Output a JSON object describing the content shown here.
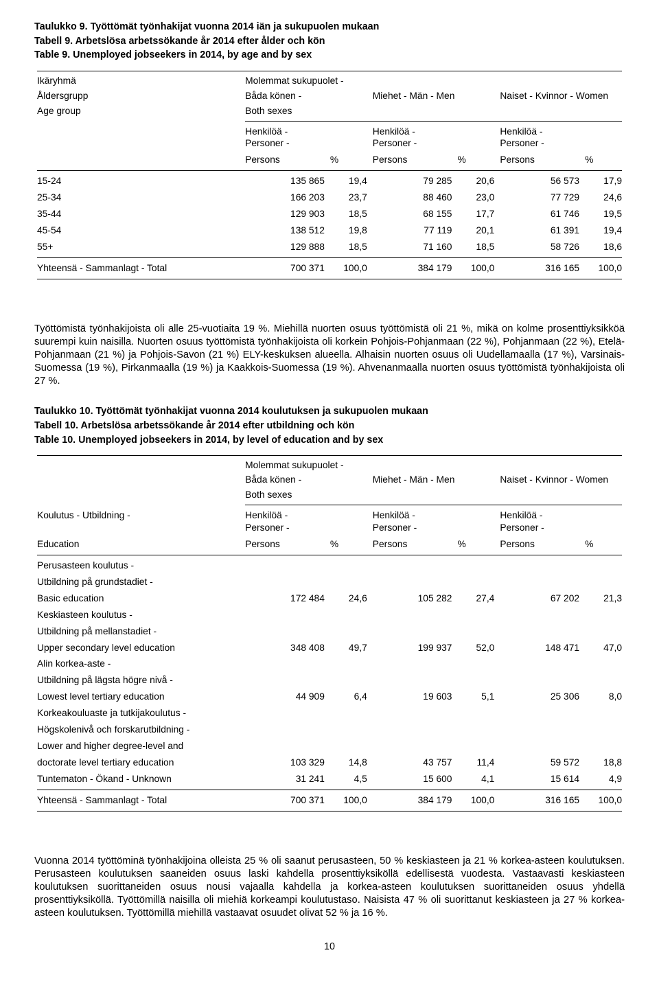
{
  "table9": {
    "title_fi": "Taulukko 9. Työttömät työnhakijat vuonna 2014 iän ja sukupuolen mukaan",
    "title_sv": "Tabell 9. Arbetslösa arbetssökande år 2014 efter ålder och kön",
    "title_en": "Table 9. Unemployed jobseekers in 2014, by age and by sex",
    "rowheaders": {
      "line1": "Ikäryhmä",
      "line2": "Åldersgrupp",
      "line3": "Age group"
    },
    "groupheaders": {
      "both_line1": "Molemmat sukupuolet -",
      "both_line2": "Båda könen -",
      "both_line3": "Both sexes",
      "men": "Miehet - Män - Men",
      "women": "Naiset - Kvinnor - Women"
    },
    "subheaders": {
      "persons_line1": "Henkilöä - Personer -",
      "persons_line2": "Persons",
      "pct": "%"
    },
    "rows": [
      {
        "label": "15-24",
        "both_n": "135 865",
        "both_p": "19,4",
        "men_n": "79 285",
        "men_p": "20,6",
        "women_n": "56 573",
        "women_p": "17,9"
      },
      {
        "label": "25-34",
        "both_n": "166 203",
        "both_p": "23,7",
        "men_n": "88 460",
        "men_p": "23,0",
        "women_n": "77 729",
        "women_p": "24,6"
      },
      {
        "label": "35-44",
        "both_n": "129 903",
        "both_p": "18,5",
        "men_n": "68 155",
        "men_p": "17,7",
        "women_n": "61 746",
        "women_p": "19,5"
      },
      {
        "label": "45-54",
        "both_n": "138 512",
        "both_p": "19,8",
        "men_n": "77 119",
        "men_p": "20,1",
        "women_n": "61 391",
        "women_p": "19,4"
      },
      {
        "label": "55+",
        "both_n": "129 888",
        "both_p": "18,5",
        "men_n": "71 160",
        "men_p": "18,5",
        "women_n": "58 726",
        "women_p": "18,6"
      }
    ],
    "total": {
      "label": "Yhteensä - Sammanlagt - Total",
      "both_n": "700 371",
      "both_p": "100,0",
      "men_n": "384 179",
      "men_p": "100,0",
      "women_n": "316 165",
      "women_p": "100,0"
    }
  },
  "para1": "Työttömistä työnhakijoista oli alle 25-vuotiaita 19 %. Miehillä nuorten osuus työttömistä oli 21 %, mikä on kolme prosenttiyksikköä suurempi kuin naisilla. Nuorten osuus työttömistä työnhakijoista oli korkein Pohjois-Pohjanmaan (22 %), Pohjanmaan (22 %), Etelä-Pohjanmaan (21 %) ja Pohjois-Savon (21 %) ELY-keskuksen alueella. Alhaisin nuorten osuus oli Uudellamaalla (17 %), Varsinais-Suomessa (19 %), Pirkanmaalla (19 %) ja Kaakkois-Suomessa (19 %). Ahvenanmaalla nuorten osuus työttömistä työnhakijoista oli 27 %.",
  "table10": {
    "title_fi": "Taulukko 10.  Työttömät työnhakijat vuonna 2014 koulutuksen ja sukupuolen mukaan",
    "title_sv": "Tabell 10. Arbetslösa arbetssökande år 2014 efter utbildning och kön",
    "title_en": "Table 10.  Unemployed jobseekers in 2014, by level of education and by sex",
    "rowheaders": {
      "line1": "Koulutus - Utbildning -",
      "line2": "Education"
    },
    "rows": [
      {
        "labels": [
          "Perusasteen koulutus -",
          "Utbildning på grundstadiet -",
          "Basic education"
        ],
        "both_n": "172 484",
        "both_p": "24,6",
        "men_n": "105 282",
        "men_p": "27,4",
        "women_n": "67 202",
        "women_p": "21,3"
      },
      {
        "labels": [
          "Keskiasteen koulutus -",
          "Utbildning på mellanstadiet -",
          "Upper secondary level education"
        ],
        "both_n": "348 408",
        "both_p": "49,7",
        "men_n": "199 937",
        "men_p": "52,0",
        "women_n": "148 471",
        "women_p": "47,0"
      },
      {
        "labels": [
          "Alin korkea-aste -",
          "Utbildning på lägsta högre nivå -",
          "Lowest level tertiary education"
        ],
        "both_n": "44 909",
        "both_p": "6,4",
        "men_n": "19 603",
        "men_p": "5,1",
        "women_n": "25 306",
        "women_p": "8,0"
      },
      {
        "labels": [
          "Korkeakouluaste ja tutkijakoulutus -",
          "Högskolenivå och forskarutbildning -",
          "Lower and higher degree-level and",
          "doctorate level tertiary education"
        ],
        "both_n": "103 329",
        "both_p": "14,8",
        "men_n": "43 757",
        "men_p": "11,4",
        "women_n": "59 572",
        "women_p": "18,8"
      },
      {
        "labels": [
          "Tuntematon - Ökand - Unknown"
        ],
        "both_n": "31 241",
        "both_p": "4,5",
        "men_n": "15 600",
        "men_p": "4,1",
        "women_n": "15 614",
        "women_p": "4,9"
      }
    ],
    "total": {
      "label": "Yhteensä - Sammanlagt - Total",
      "both_n": "700 371",
      "both_p": "100,0",
      "men_n": "384 179",
      "men_p": "100,0",
      "women_n": "316 165",
      "women_p": "100,0"
    }
  },
  "para2": "Vuonna 2014 työttöminä työnhakijoina olleista 25 % oli saanut perusasteen, 50 % keskiasteen ja 21 % korkea-asteen koulutuksen. Perusasteen koulutuksen saaneiden osuus laski kahdella prosenttiyksiköllä edellisestä vuodesta. Vastaavasti keskiasteen koulutuksen suorittaneiden osuus nousi vajaalla kahdella ja korkea-asteen koulutuksen suorittaneiden osuus yhdellä prosenttiyksiköllä. Työttömillä naisilla oli miehiä korkeampi koulutustaso. Naisista 47 % oli suorittanut keskiasteen ja 27 % korkea-asteen koulutuksen. Työttömillä miehillä vastaavat osuudet olivat 52 % ja 16 %.",
  "page_number": "10"
}
